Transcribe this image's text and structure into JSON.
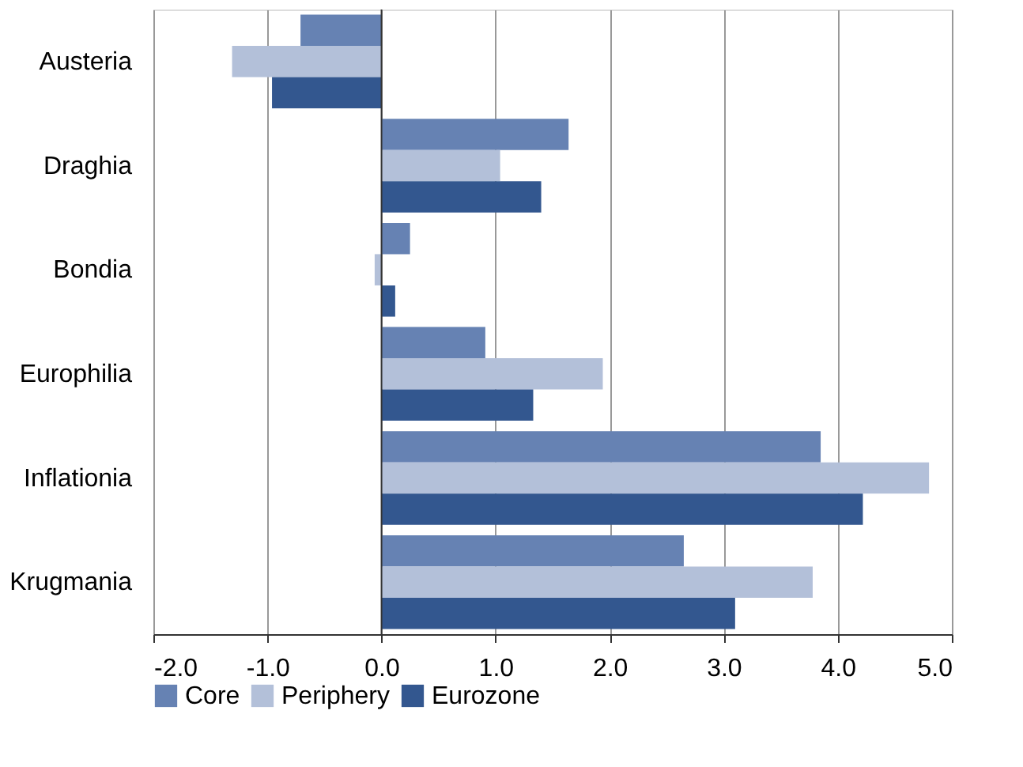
{
  "chart_data": {
    "type": "bar",
    "orientation": "horizontal",
    "categories": [
      "Austeria",
      "Draghia",
      "Bondia",
      "Europhilia",
      "Inflationia",
      "Krugmania"
    ],
    "series": [
      {
        "name": "Core",
        "color": "#6682b3",
        "values": [
          -0.71,
          1.64,
          0.25,
          0.91,
          3.85,
          2.65
        ]
      },
      {
        "name": "Periphery",
        "color": "#b3c0d9",
        "values": [
          -1.31,
          1.04,
          -0.06,
          1.94,
          4.8,
          3.78
        ]
      },
      {
        "name": "Eurozone",
        "color": "#33578f",
        "values": [
          -0.96,
          1.4,
          0.12,
          1.33,
          4.22,
          3.1
        ]
      }
    ],
    "xlim": [
      -2.0,
      5.0
    ],
    "xticks": [
      {
        "value": -2,
        "label": "-2.0"
      },
      {
        "value": -1,
        "label": "-1.0"
      },
      {
        "value": 0,
        "label": "0.0"
      },
      {
        "value": 1,
        "label": "1.0"
      },
      {
        "value": 2,
        "label": "2.0"
      },
      {
        "value": 3,
        "label": "3.0"
      },
      {
        "value": 4,
        "label": "4.0"
      },
      {
        "value": 5,
        "label": "5.0"
      }
    ],
    "grid": "x",
    "legend": "bottom"
  }
}
